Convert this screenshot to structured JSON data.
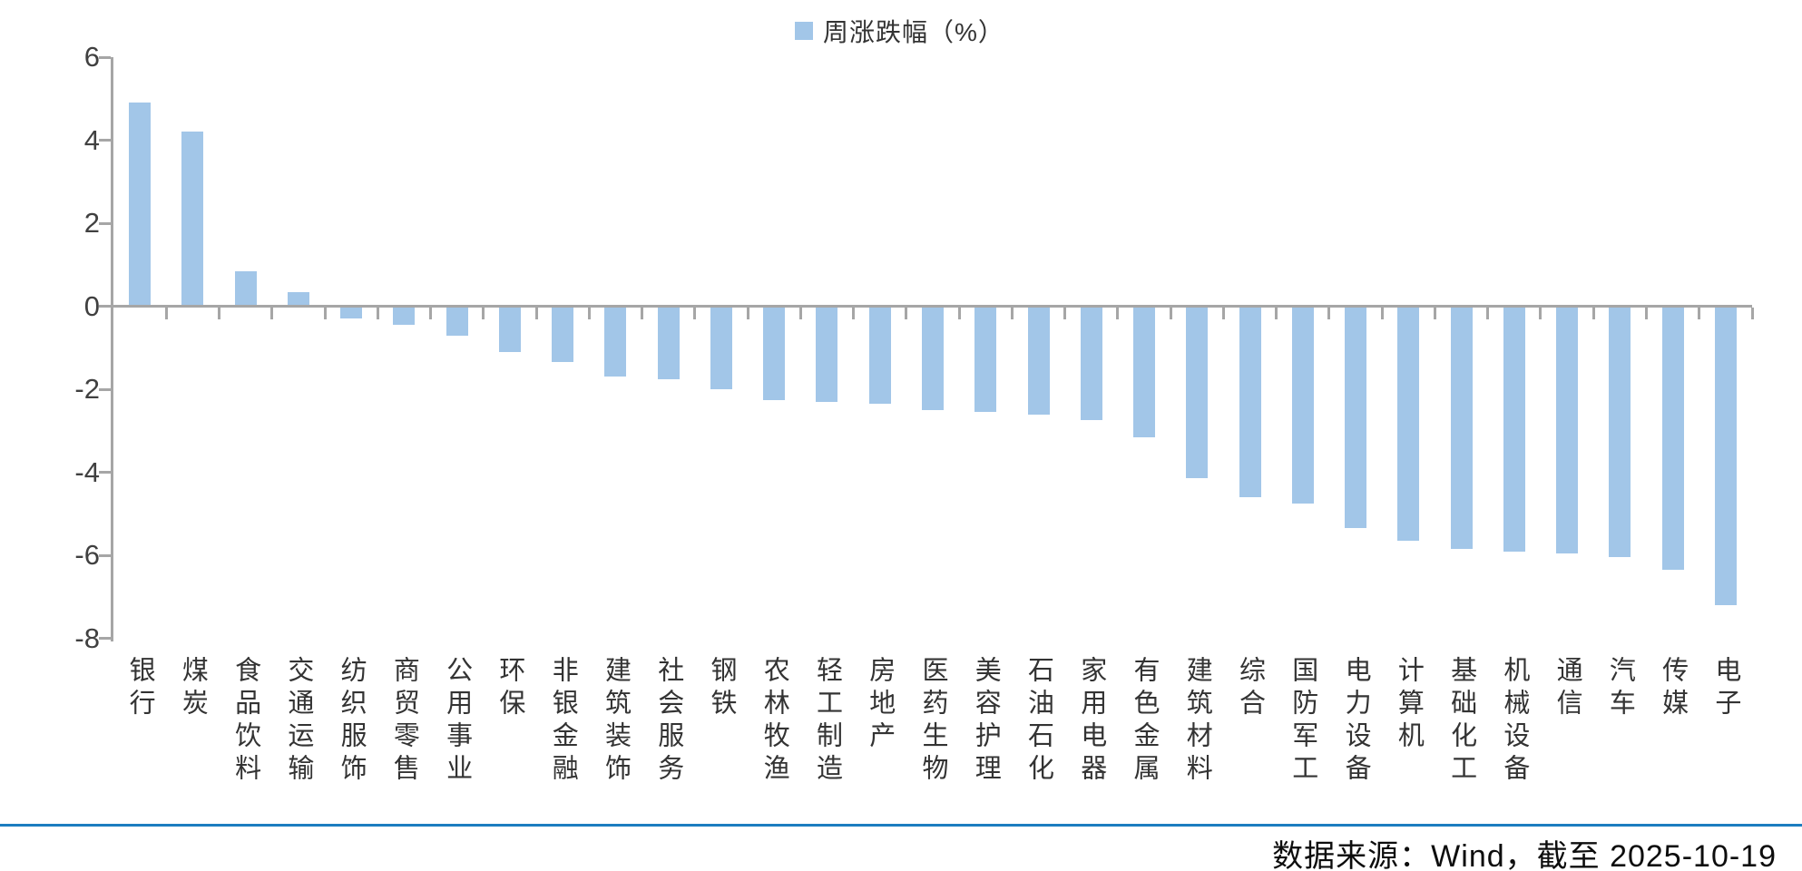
{
  "legend": {
    "label": "周涨跌幅（%）"
  },
  "footer": {
    "source_text": "数据来源：Wind，截至 2025-10-19"
  },
  "colors": {
    "bar": "#a2c6e8",
    "axis": "#a6a6a6",
    "divider": "#1c7dc0",
    "axis_label": "#404040"
  },
  "chart_data": {
    "type": "bar",
    "title": "",
    "legend": "周涨跌幅（%）",
    "legend_position": "top-center",
    "grid": false,
    "ylim": [
      -8,
      6
    ],
    "y_ticks": [
      6,
      4,
      2,
      0,
      -2,
      -4,
      -6,
      -8
    ],
    "xlabel": "",
    "ylabel": "周涨跌幅（%）",
    "categories": [
      "银行",
      "煤炭",
      "食品饮料",
      "交通运输",
      "纺织服饰",
      "商贸零售",
      "公用事业",
      "环保",
      "非银金融",
      "建筑装饰",
      "社会服务",
      "钢铁",
      "农林牧渔",
      "轻工制造",
      "房地产",
      "医药生物",
      "美容护理",
      "石油石化",
      "家用电器",
      "有色金属",
      "建筑材料",
      "综合",
      "国防军工",
      "电力设备",
      "计算机",
      "基础化工",
      "机械设备",
      "通信",
      "汽车",
      "传媒",
      "电子"
    ],
    "values": [
      4.9,
      4.2,
      0.85,
      0.35,
      -0.3,
      -0.45,
      -0.7,
      -1.1,
      -1.35,
      -1.7,
      -1.75,
      -2.0,
      -2.25,
      -2.3,
      -2.35,
      -2.5,
      -2.55,
      -2.6,
      -2.75,
      -3.15,
      -4.15,
      -4.6,
      -4.75,
      -5.35,
      -5.65,
      -5.85,
      -5.9,
      -5.95,
      -6.05,
      -6.35,
      -7.2
    ],
    "bar_color": "#a2c6e8"
  }
}
